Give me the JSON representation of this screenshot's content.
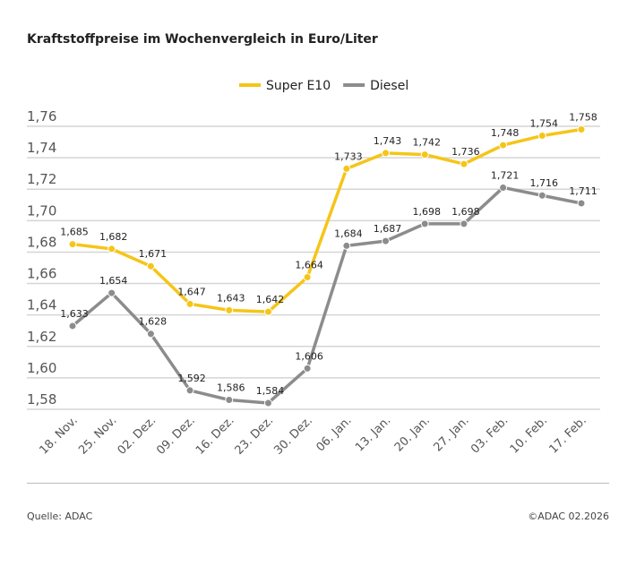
{
  "title": "Kraftstoffpreise im Wochenvergleich in Euro/Liter",
  "source": "Quelle: ADAC",
  "copyright": "©ADAC 02.2026",
  "chart_data": {
    "type": "line",
    "title": "Kraftstoffpreise im Wochenvergleich in Euro/Liter",
    "categories": [
      "18. Nov.",
      "25. Nov.",
      "02. Dez.",
      "09. Dez.",
      "16. Dez.",
      "23. Dez.",
      "30. Dez.",
      "06. Jan.",
      "13. Jan.",
      "20. Jan.",
      "27. Jan.",
      "03. Feb.",
      "10. Feb.",
      "17. Feb."
    ],
    "series": [
      {
        "name": "Super E10",
        "color": "#f5c518",
        "values": [
          1.685,
          1.682,
          1.671,
          1.647,
          1.643,
          1.642,
          1.664,
          1.733,
          1.743,
          1.742,
          1.736,
          1.748,
          1.754,
          1.758
        ]
      },
      {
        "name": "Diesel",
        "color": "#8c8c8c",
        "values": [
          1.633,
          1.654,
          1.628,
          1.592,
          1.586,
          1.584,
          1.606,
          1.684,
          1.687,
          1.698,
          1.698,
          1.721,
          1.716,
          1.711
        ]
      }
    ],
    "yticks": [
      "1,58",
      "1,60",
      "1,62",
      "1,64",
      "1,66",
      "1,68",
      "1,70",
      "1,72",
      "1,74",
      "1,76"
    ],
    "ylim": [
      1.58,
      1.76
    ],
    "grid": true,
    "legend_placement": "top-center",
    "decimal_separator": ","
  }
}
